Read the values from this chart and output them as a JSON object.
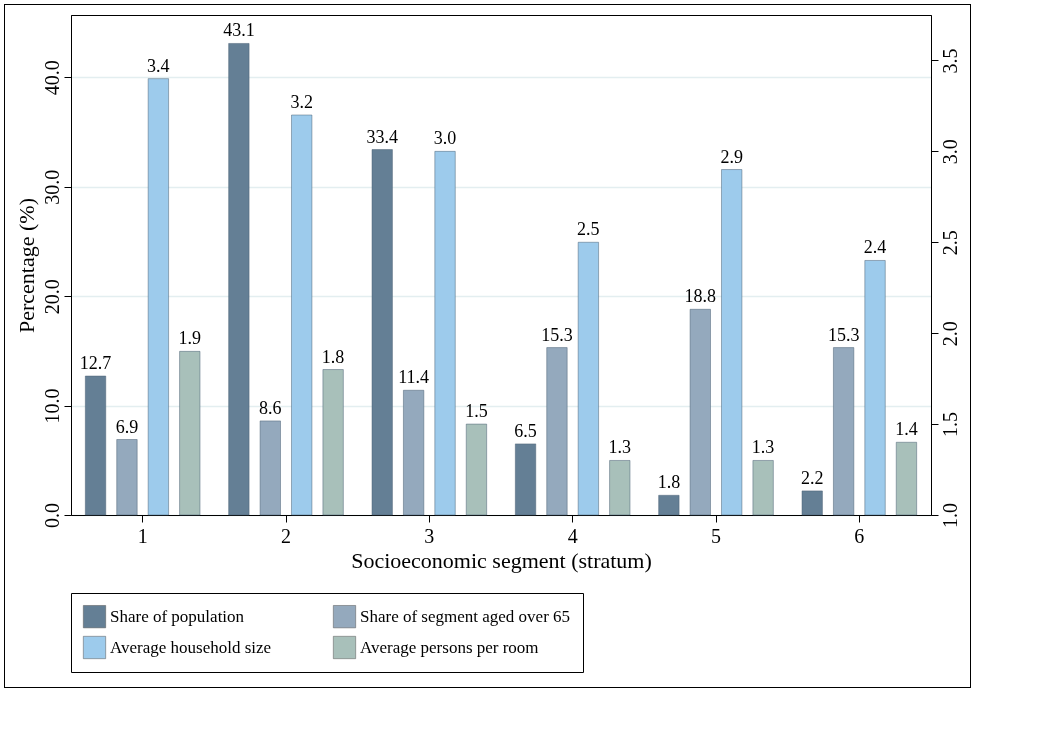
{
  "chart_data": {
    "type": "bar",
    "xlabel": "Socioeconomic segment (stratum)",
    "ylabel": "Percentage (%)",
    "categories": [
      "1",
      "2",
      "3",
      "4",
      "5",
      "6"
    ],
    "series": [
      {
        "name": "Share of population",
        "color": "#647f95",
        "values": [
          12.7,
          43.1,
          33.4,
          6.5,
          1.8,
          2.2
        ],
        "value_labels": [
          "12.7",
          "43.1",
          "33.4",
          "6.5",
          "1.8",
          "2.2"
        ]
      },
      {
        "name": "Share of segment aged over 65",
        "color": "#94a9bd",
        "values": [
          6.9,
          8.6,
          11.4,
          15.3,
          18.8,
          15.3
        ],
        "value_labels": [
          "6.9",
          "8.6",
          "11.4",
          "15.3",
          "18.8",
          "15.3"
        ]
      },
      {
        "name": "Average household size",
        "color": "#9dcbec",
        "axis": "y2",
        "values": [
          3.4,
          3.2,
          3.0,
          2.5,
          2.9,
          2.4
        ],
        "value_labels": [
          "3.4",
          "3.2",
          "3.0",
          "2.5",
          "2.9",
          "2.4"
        ]
      },
      {
        "name": "Average persons per room",
        "color": "#a8c0ba",
        "axis": "y2",
        "values": [
          1.9,
          1.8,
          1.5,
          1.3,
          1.3,
          1.4
        ],
        "value_labels": [
          "1.9",
          "1.8",
          "1.5",
          "1.3",
          "1.3",
          "1.4"
        ]
      }
    ],
    "ylim": [
      0,
      45.7
    ],
    "yticks": [
      {
        "value": 0,
        "label": "0.0"
      },
      {
        "value": 10,
        "label": "10.0"
      },
      {
        "value": 20,
        "label": "20.0"
      },
      {
        "value": 30,
        "label": "30.0"
      },
      {
        "value": 40,
        "label": "40.0"
      }
    ],
    "y2lim": [
      1,
      3.75
    ],
    "y2ticks": [
      {
        "value": 1,
        "label": "1.0"
      },
      {
        "value": 1.5,
        "label": "1.5"
      },
      {
        "value": 2,
        "label": "2.0"
      },
      {
        "value": 2.5,
        "label": "2.5"
      },
      {
        "value": 3,
        "label": "3.0"
      },
      {
        "value": 3.5,
        "label": "3.5"
      }
    ],
    "grid": "y",
    "legend": "bottom"
  }
}
